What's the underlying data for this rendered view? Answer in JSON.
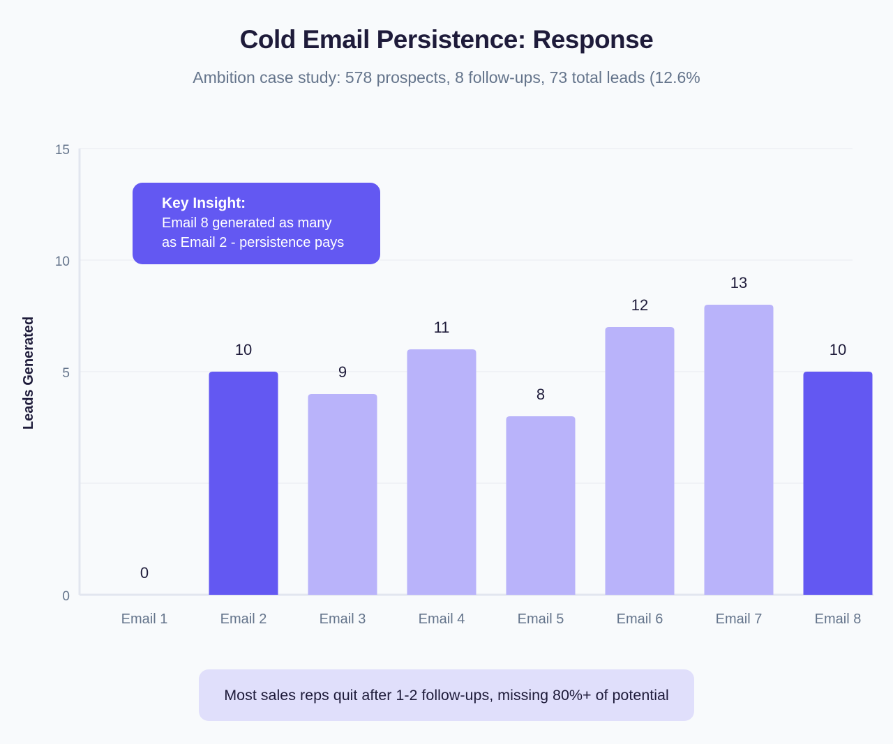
{
  "title": "Cold Email Persistence: Response",
  "subtitle": "Ambition case study: 578 prospects, 8 follow-ups, 73 total leads (12.6%",
  "insight": {
    "heading": "Key Insight:",
    "line1": "Email 8 generated as many",
    "line2": "as Email 2 - persistence pays"
  },
  "footer": "Most sales reps quit after 1-2 follow-ups, missing 80%+ of potential",
  "colors": {
    "highlight": "#6358f2",
    "normal": "#b9b3fa",
    "background": "#f8fafc"
  },
  "chart_data": {
    "type": "bar",
    "title": "Cold Email Persistence: Response",
    "xlabel": "",
    "ylabel": "Leads Generated",
    "categories": [
      "Email 1",
      "Email 2",
      "Email 3",
      "Email 4",
      "Email 5",
      "Email 6",
      "Email 7",
      "Email 8"
    ],
    "values": [
      0,
      10,
      9,
      11,
      8,
      12,
      13,
      10
    ],
    "highlighted": [
      "Email 2",
      "Email 8"
    ],
    "ylim": [
      0,
      20
    ],
    "ytick_labels": [
      "0",
      "5",
      "10",
      "15"
    ],
    "grid": true,
    "legend": "none"
  }
}
